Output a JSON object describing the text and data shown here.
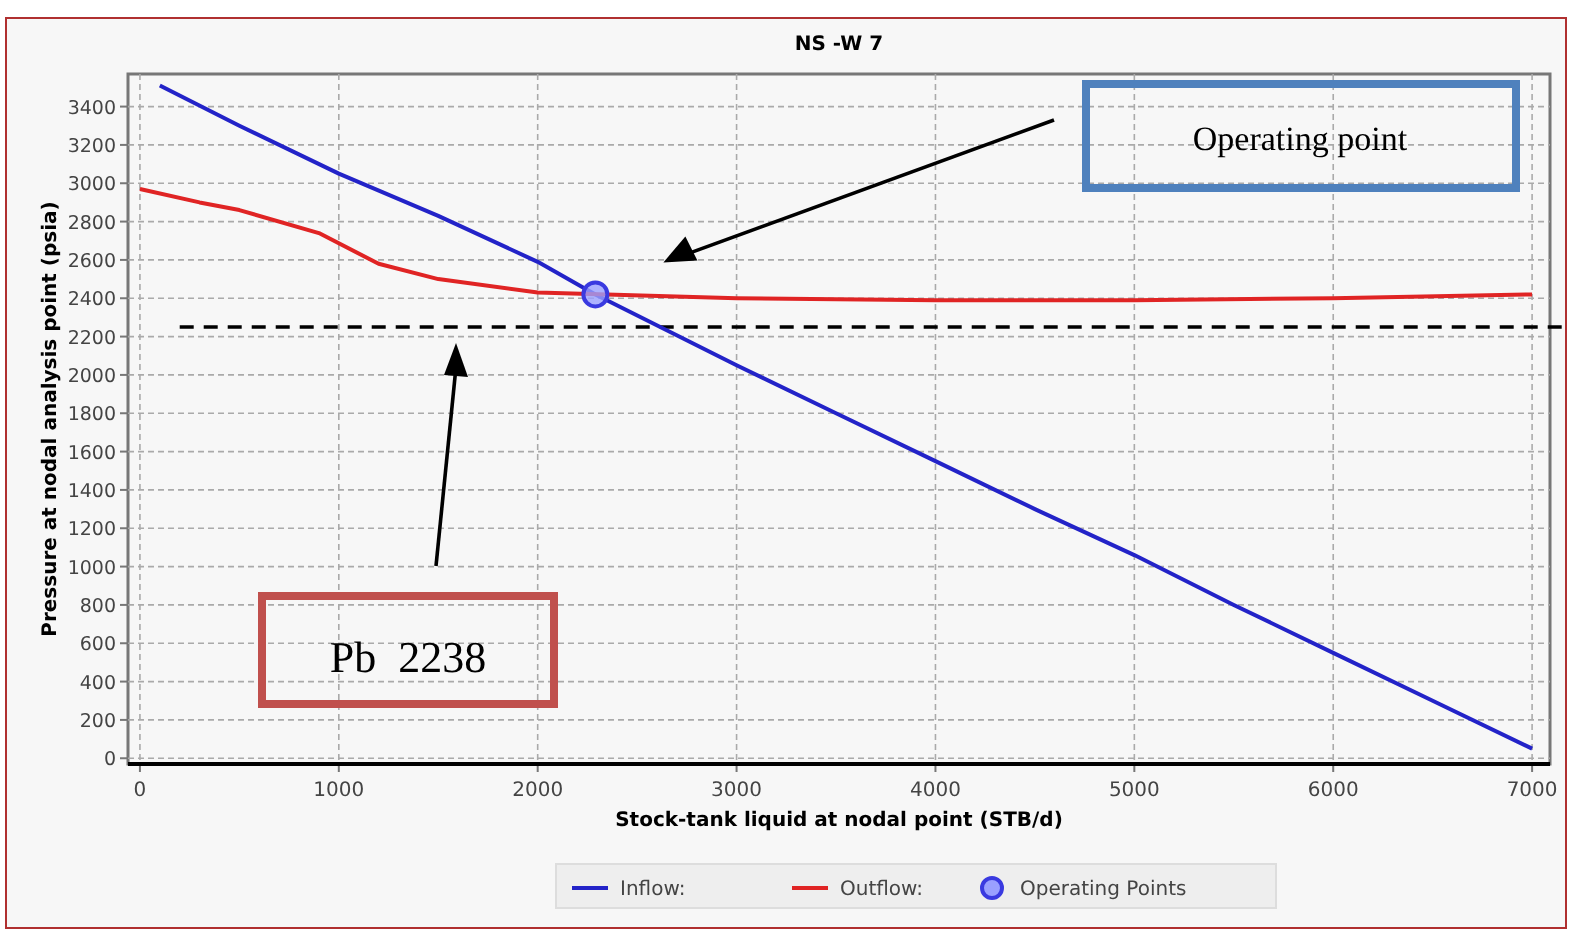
{
  "chart_data": {
    "type": "line",
    "title": "NS -W 7",
    "xlabel": "Stock-tank liquid at nodal point (STB/d)",
    "ylabel": "Pressure at nodal analysis point (psia)",
    "xlim": [
      -60,
      7090
    ],
    "ylim": [
      -30,
      3570
    ],
    "xticks": [
      0,
      1000,
      2000,
      3000,
      4000,
      5000,
      6000,
      7000
    ],
    "yticks": [
      0,
      200,
      400,
      600,
      800,
      1000,
      1200,
      1400,
      1600,
      1800,
      2000,
      2200,
      2400,
      2600,
      2800,
      3000,
      3200,
      3400
    ],
    "grid": true,
    "legend": "bottom",
    "line_style": "solid",
    "series": [
      {
        "name": "Inflow:",
        "color": "#2323c8",
        "x": [
          100,
          500,
          1000,
          1500,
          2000,
          2290,
          3000,
          3500,
          4000,
          4500,
          5000,
          5500,
          6000,
          6500,
          7000
        ],
        "values": [
          3510,
          3300,
          3050,
          2830,
          2590,
          2420,
          2050,
          1800,
          1550,
          1300,
          1060,
          800,
          550,
          300,
          50
        ]
      },
      {
        "name": "Outflow:",
        "color": "#e02424",
        "x": [
          0,
          300,
          500,
          900,
          1200,
          1500,
          2000,
          3000,
          4000,
          5000,
          6000,
          7000
        ],
        "values": [
          2970,
          2900,
          2860,
          2740,
          2580,
          2500,
          2430,
          2400,
          2390,
          2390,
          2400,
          2420
        ]
      },
      {
        "name": "Operating Points",
        "type": "scatter",
        "marker": "circle",
        "color": "#3a3ae0",
        "x": [
          2290
        ],
        "values": [
          2420
        ]
      }
    ],
    "ref_lines": [
      {
        "axis": "y",
        "value": 2250,
        "color": "#000000",
        "line_style": "dashed"
      }
    ],
    "annotations": [
      "Operating point",
      "Pb  2238"
    ]
  }
}
